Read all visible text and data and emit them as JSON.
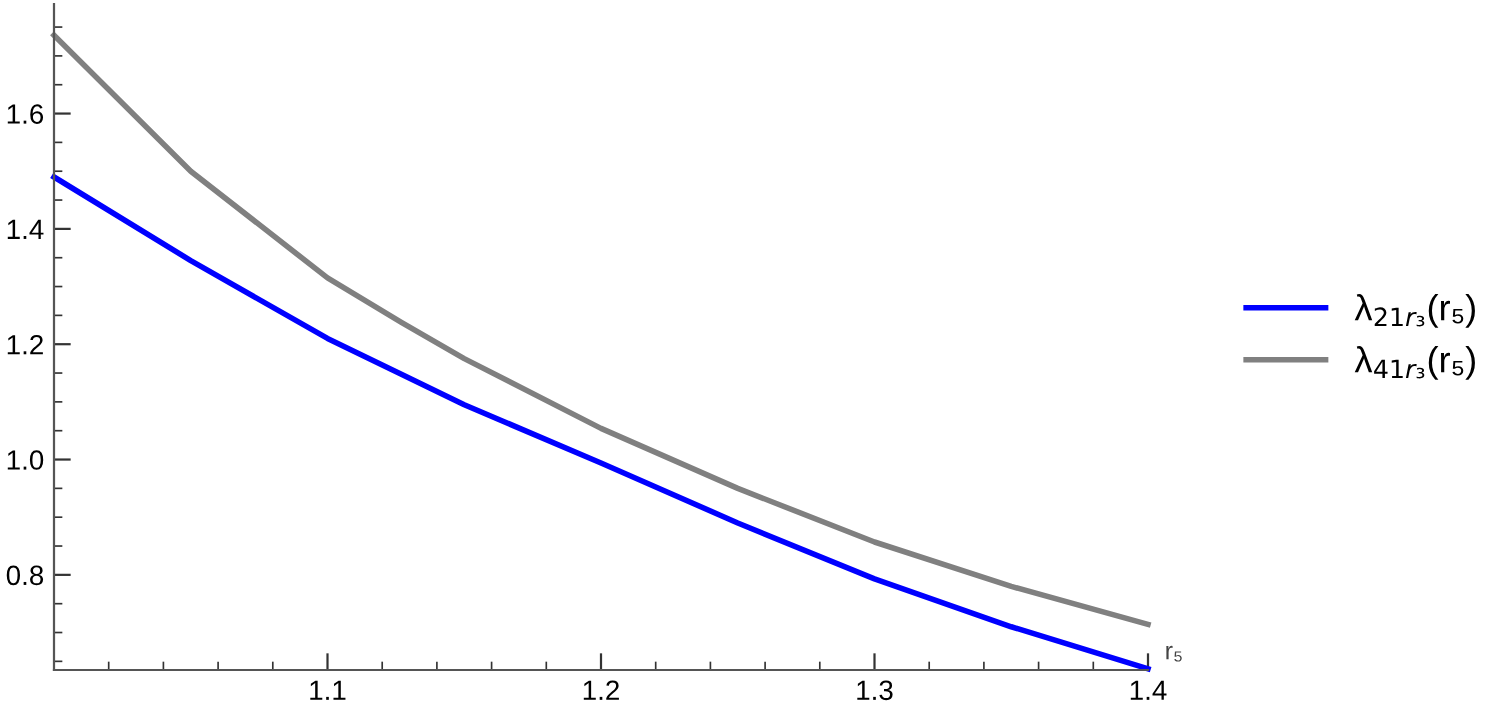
{
  "chart_data": {
    "type": "line",
    "xlabel": "r₅",
    "x": [
      1.0,
      1.05,
      1.1,
      1.127,
      1.15,
      1.2,
      1.25,
      1.3,
      1.35,
      1.4
    ],
    "series": [
      {
        "name": "λ$_{21r₃}$(r₅)",
        "color": "#0000ff",
        "values": [
          1.49,
          1.345,
          1.21,
          1.148,
          1.095,
          0.994,
          0.89,
          0.793,
          0.71,
          0.637
        ]
      },
      {
        "name": "λ$_{41r₃}$(r₅)",
        "color": "#808080",
        "values": [
          1.736,
          1.5,
          1.315,
          1.238,
          1.175,
          1.054,
          0.95,
          0.857,
          0.78,
          0.714
        ]
      }
    ],
    "xlim": [
      1.0,
      1.4
    ],
    "ylim": [
      0.635,
      1.79
    ],
    "xticks": [
      1.1,
      1.2,
      1.3,
      1.4
    ],
    "yticks": [
      0.8,
      {
        "value": 1.0,
        "label": "1.0"
      },
      1.2,
      1.4,
      1.6
    ],
    "grid": false,
    "legend": "right",
    "marker": "none",
    "line_style": "solid"
  }
}
